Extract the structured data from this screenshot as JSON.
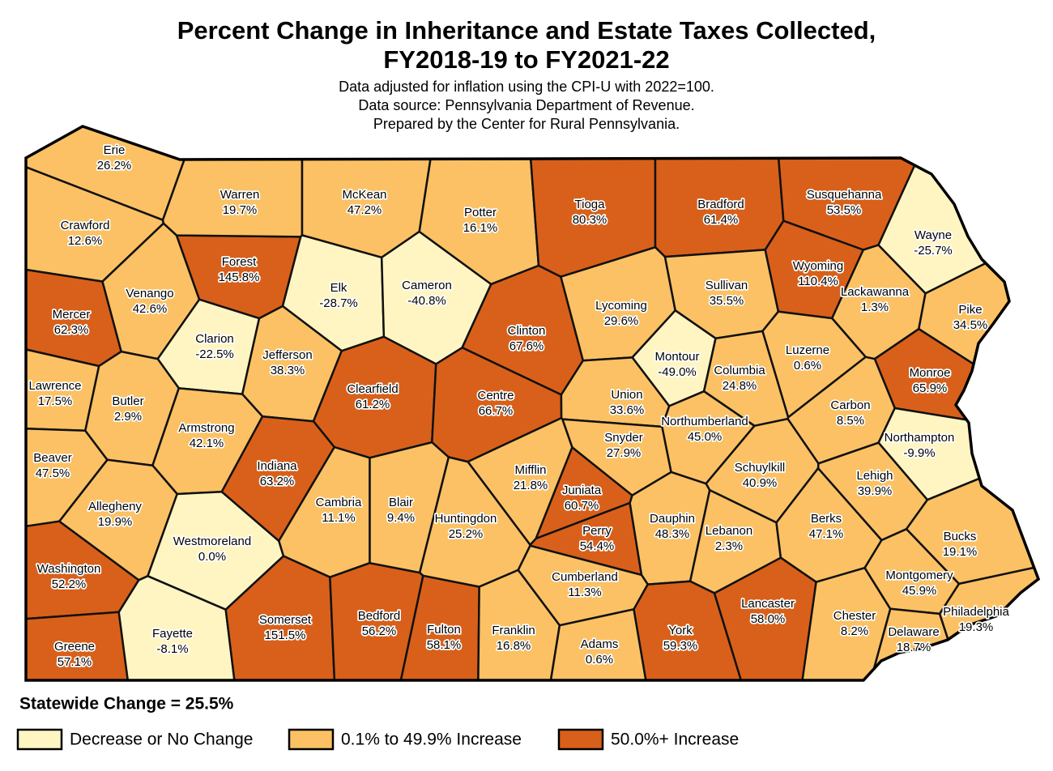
{
  "chart_data": {
    "type": "choropleth",
    "title": [
      "Percent Change in Inheritance and Estate Taxes Collected,",
      "FY2018-19 to FY2021-22"
    ],
    "subtitle": [
      "Data adjusted for inflation using the CPI-U with 2022=100.",
      "Data source: Pennsylvania Department of Revenue.",
      "Prepared by the Center for Rural Pennsylvania."
    ],
    "note": "Statewide Change = 25.5%",
    "legend": [
      {
        "name": "Decrease or No Change",
        "color": "#fff5c2"
      },
      {
        "name": "0.1% to 49.9% Increase",
        "color": "#fbc164"
      },
      {
        "name": "50.0%+ Increase",
        "color": "#d9601a"
      }
    ],
    "regions": [
      {
        "name": "Erie",
        "value": 26.2,
        "value_label": "26.2%",
        "color": "#fbc164"
      },
      {
        "name": "Crawford",
        "value": 12.6,
        "value_label": "12.6%",
        "color": "#fbc164"
      },
      {
        "name": "Mercer",
        "value": 62.3,
        "value_label": "62.3%",
        "color": "#d9601a"
      },
      {
        "name": "Lawrence",
        "value": 17.5,
        "value_label": "17.5%",
        "color": "#fbc164"
      },
      {
        "name": "Beaver",
        "value": 47.5,
        "value_label": "47.5%",
        "color": "#fbc164"
      },
      {
        "name": "Washington",
        "value": 52.2,
        "value_label": "52.2%",
        "color": "#d9601a"
      },
      {
        "name": "Greene",
        "value": 57.1,
        "value_label": "57.1%",
        "color": "#d9601a"
      },
      {
        "name": "Venango",
        "value": 42.6,
        "value_label": "42.6%",
        "color": "#fbc164"
      },
      {
        "name": "Forest",
        "value": 145.8,
        "value_label": "145.8%",
        "color": "#d9601a"
      },
      {
        "name": "Clarion",
        "value": -22.5,
        "value_label": "-22.5%",
        "color": "#fff5c2"
      },
      {
        "name": "Butler",
        "value": 2.9,
        "value_label": "2.9%",
        "color": "#fbc164"
      },
      {
        "name": "Armstrong",
        "value": 42.1,
        "value_label": "42.1%",
        "color": "#fbc164"
      },
      {
        "name": "Allegheny",
        "value": 19.9,
        "value_label": "19.9%",
        "color": "#fbc164"
      },
      {
        "name": "Westmoreland",
        "value": 0.0,
        "value_label": "0.0%",
        "color": "#fff5c2"
      },
      {
        "name": "Fayette",
        "value": -8.1,
        "value_label": "-8.1%",
        "color": "#fff5c2"
      },
      {
        "name": "Warren",
        "value": 19.7,
        "value_label": "19.7%",
        "color": "#fbc164"
      },
      {
        "name": "McKean",
        "value": 47.2,
        "value_label": "47.2%",
        "color": "#fbc164"
      },
      {
        "name": "Elk",
        "value": -28.7,
        "value_label": "-28.7%",
        "color": "#fff5c2"
      },
      {
        "name": "Cameron",
        "value": -40.8,
        "value_label": "-40.8%",
        "color": "#fff5c2"
      },
      {
        "name": "Jefferson",
        "value": 38.3,
        "value_label": "38.3%",
        "color": "#fbc164"
      },
      {
        "name": "Clearfield",
        "value": 61.2,
        "value_label": "61.2%",
        "color": "#d9601a"
      },
      {
        "name": "Indiana",
        "value": 63.2,
        "value_label": "63.2%",
        "color": "#d9601a"
      },
      {
        "name": "Cambria",
        "value": 11.1,
        "value_label": "11.1%",
        "color": "#fbc164"
      },
      {
        "name": "Somerset",
        "value": 151.5,
        "value_label": "151.5%",
        "color": "#d9601a"
      },
      {
        "name": "Bedford",
        "value": 56.2,
        "value_label": "56.2%",
        "color": "#d9601a"
      },
      {
        "name": "Blair",
        "value": 9.4,
        "value_label": "9.4%",
        "color": "#fbc164"
      },
      {
        "name": "Fulton",
        "value": 58.1,
        "value_label": "58.1%",
        "color": "#d9601a"
      },
      {
        "name": "Huntingdon",
        "value": 25.2,
        "value_label": "25.2%",
        "color": "#fbc164"
      },
      {
        "name": "Potter",
        "value": 16.1,
        "value_label": "16.1%",
        "color": "#fbc164"
      },
      {
        "name": "Tioga",
        "value": 80.3,
        "value_label": "80.3%",
        "color": "#d9601a"
      },
      {
        "name": "Bradford",
        "value": 61.4,
        "value_label": "61.4%",
        "color": "#d9601a"
      },
      {
        "name": "Susquehanna",
        "value": 53.5,
        "value_label": "53.5%",
        "color": "#d9601a"
      },
      {
        "name": "Wayne",
        "value": -25.7,
        "value_label": "-25.7%",
        "color": "#fff5c2"
      },
      {
        "name": "Clinton",
        "value": 67.6,
        "value_label": "67.6%",
        "color": "#d9601a"
      },
      {
        "name": "Centre",
        "value": 66.7,
        "value_label": "66.7%",
        "color": "#d9601a"
      },
      {
        "name": "Lycoming",
        "value": 29.6,
        "value_label": "29.6%",
        "color": "#fbc164"
      },
      {
        "name": "Sullivan",
        "value": 35.5,
        "value_label": "35.5%",
        "color": "#fbc164"
      },
      {
        "name": "Wyoming",
        "value": 110.4,
        "value_label": "110.4%",
        "color": "#d9601a"
      },
      {
        "name": "Lackawanna",
        "value": 1.3,
        "value_label": "1.3%",
        "color": "#fbc164"
      },
      {
        "name": "Pike",
        "value": 34.5,
        "value_label": "34.5%",
        "color": "#fbc164"
      },
      {
        "name": "Luzerne",
        "value": 0.6,
        "value_label": "0.6%",
        "color": "#fbc164"
      },
      {
        "name": "Montour",
        "value": -49.0,
        "value_label": "-49.0%",
        "color": "#fff5c2"
      },
      {
        "name": "Columbia",
        "value": 24.8,
        "value_label": "24.8%",
        "color": "#fbc164"
      },
      {
        "name": "Union",
        "value": 33.6,
        "value_label": "33.6%",
        "color": "#fbc164"
      },
      {
        "name": "Snyder",
        "value": 27.9,
        "value_label": "27.9%",
        "color": "#fbc164"
      },
      {
        "name": "Northumberland",
        "value": 45.0,
        "value_label": "45.0%",
        "color": "#fbc164"
      },
      {
        "name": "Mifflin",
        "value": 21.8,
        "value_label": "21.8%",
        "color": "#fbc164"
      },
      {
        "name": "Juniata",
        "value": 60.7,
        "value_label": "60.7%",
        "color": "#d9601a"
      },
      {
        "name": "Perry",
        "value": 54.4,
        "value_label": "54.4%",
        "color": "#d9601a"
      },
      {
        "name": "Monroe",
        "value": 65.9,
        "value_label": "65.9%",
        "color": "#d9601a"
      },
      {
        "name": "Carbon",
        "value": 8.5,
        "value_label": "8.5%",
        "color": "#fbc164"
      },
      {
        "name": "Northampton",
        "value": -9.9,
        "value_label": "-9.9%",
        "color": "#fff5c2"
      },
      {
        "name": "Lehigh",
        "value": 39.9,
        "value_label": "39.9%",
        "color": "#fbc164"
      },
      {
        "name": "Schuylkill",
        "value": 40.9,
        "value_label": "40.9%",
        "color": "#fbc164"
      },
      {
        "name": "Dauphin",
        "value": 48.3,
        "value_label": "48.3%",
        "color": "#fbc164"
      },
      {
        "name": "Lebanon",
        "value": 2.3,
        "value_label": "2.3%",
        "color": "#fbc164"
      },
      {
        "name": "Berks",
        "value": 47.1,
        "value_label": "47.1%",
        "color": "#fbc164"
      },
      {
        "name": "Bucks",
        "value": 19.1,
        "value_label": "19.1%",
        "color": "#fbc164"
      },
      {
        "name": "Cumberland",
        "value": 11.3,
        "value_label": "11.3%",
        "color": "#fbc164"
      },
      {
        "name": "Franklin",
        "value": 16.8,
        "value_label": "16.8%",
        "color": "#fbc164"
      },
      {
        "name": "Adams",
        "value": 0.6,
        "value_label": "0.6%",
        "color": "#fbc164"
      },
      {
        "name": "York",
        "value": 59.3,
        "value_label": "59.3%",
        "color": "#d9601a"
      },
      {
        "name": "Lancaster",
        "value": 58.0,
        "value_label": "58.0%",
        "color": "#d9601a"
      },
      {
        "name": "Chester",
        "value": 8.2,
        "value_label": "8.2%",
        "color": "#fbc164"
      },
      {
        "name": "Montgomery",
        "value": 45.9,
        "value_label": "45.9%",
        "color": "#fbc164"
      },
      {
        "name": "Delaware",
        "value": 18.7,
        "value_label": "18.7%",
        "color": "#fbc164"
      },
      {
        "name": "Philadelphia",
        "value": 19.3,
        "value_label": "19.3%",
        "color": "#fbc164"
      }
    ]
  }
}
